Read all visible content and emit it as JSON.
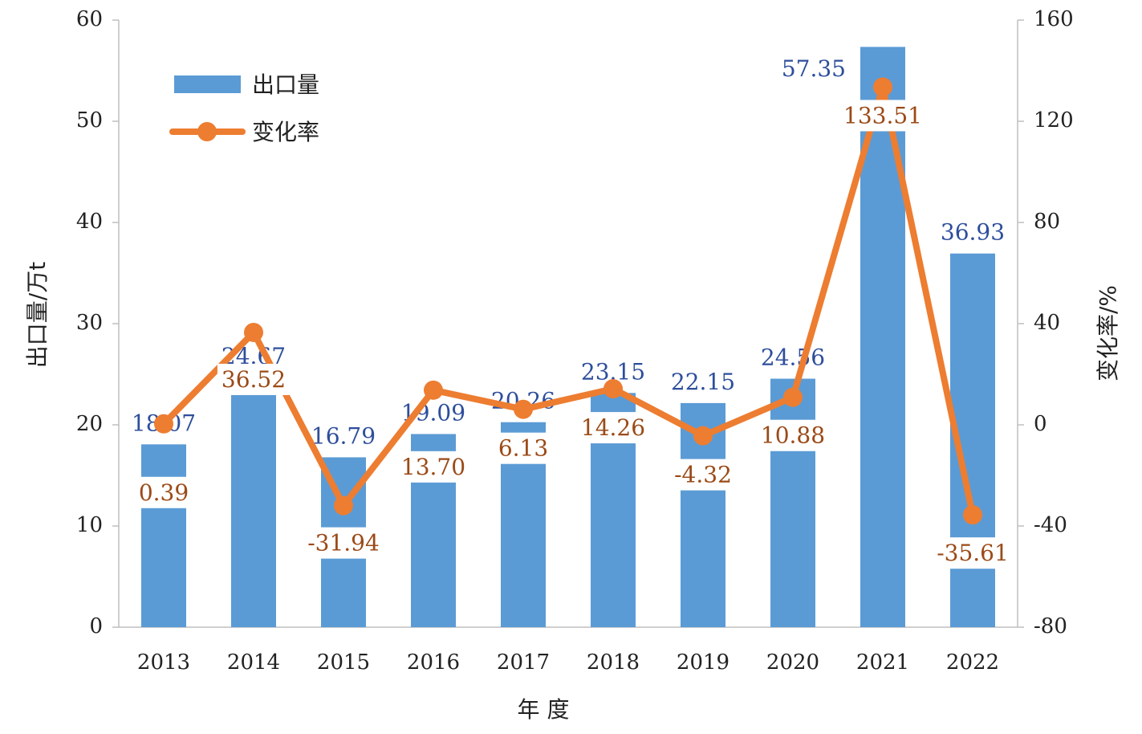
{
  "chart_data": {
    "type": "bar",
    "title": "",
    "xlabel": "年 度",
    "ylabel": "出口量/万t",
    "y2label": "变化率/%",
    "categories": [
      "2013",
      "2014",
      "2015",
      "2016",
      "2017",
      "2018",
      "2019",
      "2020",
      "2021",
      "2022"
    ],
    "ylim": [
      0,
      60
    ],
    "yticks": [
      "0",
      "10",
      "20",
      "30",
      "40",
      "50",
      "60"
    ],
    "y2lim": [
      -80,
      160
    ],
    "y2ticks": [
      "-80",
      "-40",
      "0",
      "40",
      "80",
      "120",
      "160"
    ],
    "legend_position": "top-left",
    "series": [
      {
        "name": "出口量",
        "type": "bar",
        "axis": "left",
        "color": "#5b9bd5",
        "values": [
          18.07,
          24.67,
          16.79,
          19.09,
          20.26,
          23.15,
          22.15,
          24.56,
          57.35,
          36.93
        ],
        "labels": [
          "18.07",
          "24.67",
          "16.79",
          "19.09",
          "20.26",
          "23.15",
          "22.15",
          "24.56",
          "57.35",
          "36.93"
        ]
      },
      {
        "name": "变化率",
        "type": "line",
        "axis": "right",
        "color": "#ed7d31",
        "values": [
          0.39,
          36.52,
          -31.94,
          13.7,
          6.13,
          14.26,
          -4.32,
          10.88,
          133.51,
          -35.61
        ],
        "labels": [
          "0.39",
          "36.52",
          "-31.94",
          "13.70",
          "6.13",
          "14.26",
          "-4.32",
          "10.88",
          "133.51",
          "-35.61"
        ]
      }
    ]
  }
}
